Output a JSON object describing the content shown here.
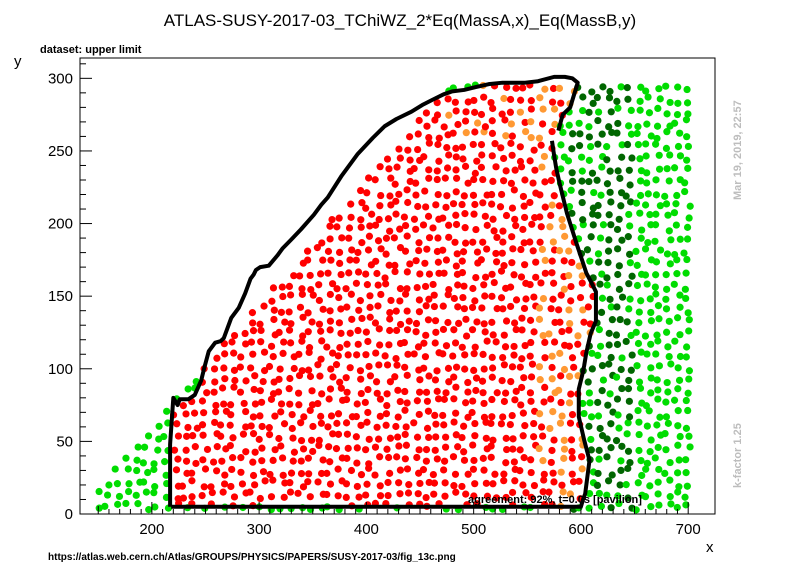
{
  "chart_data": {
    "type": "scatter",
    "title": "ATLAS-SUSY-2017-03_TChiWZ_2*Eq(MassA,x)_Eq(MassB,y)",
    "subtitle": "dataset: upper limit",
    "xlabel": "x",
    "ylabel": "y",
    "xlim": [
      133,
      725
    ],
    "ylim": [
      0,
      314
    ],
    "xticks": [
      200,
      300,
      400,
      500,
      600,
      700
    ],
    "yticks": [
      0,
      50,
      100,
      150,
      200,
      250,
      300
    ],
    "agreement_label": "agreement: 92%, t=0.0s [pavilion]",
    "side_label_top": "Mar 19, 2019, 22:57",
    "side_label_bottom": "k-factor 1.25",
    "footer_url": "https://atlas.web.cern.ch/Atlas/GROUPS/PHYSICS/PAPERS/SUSY-2017-03/fig_13c.png",
    "colors": {
      "excluded_agree": "#ff0000",
      "excluded_disagree": "#ff9933",
      "allowed_disagree": "#006600",
      "allowed_agree": "#00dd00",
      "contour": "#000000"
    },
    "contour": {
      "x": [
        217,
        217,
        220,
        224,
        226,
        234,
        240,
        246,
        249,
        253,
        259,
        264,
        267,
        274,
        281,
        287,
        292,
        295,
        297,
        301,
        309,
        317,
        322,
        330,
        339,
        351,
        358,
        364,
        377,
        392,
        406,
        417,
        428,
        442,
        453,
        461,
        472,
        480,
        491,
        502,
        514,
        527,
        539,
        548,
        560,
        575,
        585,
        592,
        597,
        590,
        583,
        579
      ],
      "y": [
        5,
        48,
        80,
        75,
        79,
        79,
        82,
        92,
        101,
        112,
        118,
        119,
        121,
        135,
        142,
        152,
        162,
        165,
        168,
        170,
        171,
        178,
        183,
        189,
        196,
        206,
        213,
        218,
        233,
        248,
        259,
        267,
        272,
        277,
        282,
        285,
        289,
        291,
        292,
        294,
        296,
        297,
        297,
        297,
        298,
        301,
        301,
        300,
        297,
        280,
        275,
        264
      ],
      "x2": [
        573,
        575,
        577,
        580,
        583,
        585,
        587,
        590,
        596,
        601,
        605,
        610,
        614,
        614,
        609,
        605,
        603,
        601,
        598,
        598,
        603,
        608,
        604,
        602,
        600,
        597,
        597,
        218
      ],
      "y2": [
        257,
        247,
        238,
        228,
        219,
        213,
        207,
        200,
        186,
        175,
        166,
        159,
        153,
        133,
        124,
        111,
        102,
        95,
        86,
        67,
        51,
        37,
        14,
        10,
        5,
        5,
        5,
        5
      ]
    },
    "agreement_pct": 92
  }
}
